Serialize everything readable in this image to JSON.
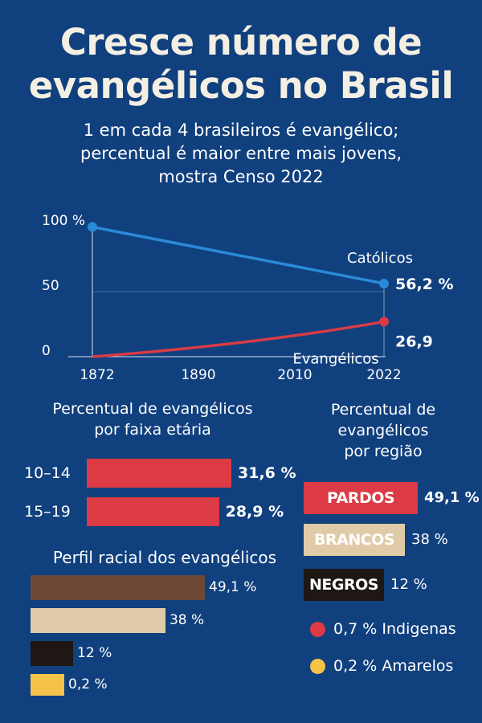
{
  "title_line1": "Cresce número de",
  "title_line2": "evangélicos no Brasil",
  "subtitle_line1": "1 em cada 4 brasileiros é evangélico;",
  "subtitle_line2": "percentual é maior entre mais jovens,",
  "subtitle_line3": "mostra Censo 2022",
  "colors": {
    "background": "#10407e",
    "catholic_line": "#2a8ad6",
    "evangelical_line": "#d83b45",
    "bar_red": "#dc3a44",
    "pardos_brown": "#6e4836",
    "brancos_beige": "#e0cba9",
    "negros_black": "#1e1714",
    "amarelos_yellow": "#f5c24a"
  },
  "chart_data": [
    {
      "type": "line",
      "x_ticks": [
        "1872",
        "1890",
        "2010",
        "2022"
      ],
      "y_ticks": [
        "100 %",
        "50",
        "0"
      ],
      "ylim": [
        0,
        100
      ],
      "series": [
        {
          "name": "Católicos",
          "x": [
            1872,
            2022
          ],
          "values": [
            99.7,
            56.2
          ],
          "end_label": "56,2 %"
        },
        {
          "name": "Evangélicos",
          "x": [
            1872,
            2022
          ],
          "values": [
            0,
            26.9
          ],
          "end_label": "26,9"
        }
      ]
    },
    {
      "type": "bar",
      "title_line1": "Percentual de evangélicos",
      "title_line2": "por faixa etária",
      "categories": [
        "10–14",
        "15–19"
      ],
      "values": [
        31.6,
        28.9
      ],
      "value_labels": [
        "31,6 %",
        "28,9 %"
      ]
    },
    {
      "type": "bar",
      "title": "Perfil racial dos evangélicos",
      "values": [
        49.1,
        38,
        12,
        0.2
      ],
      "value_labels": [
        "49,1 %",
        "38 %",
        "12 %",
        "0,2 %"
      ]
    },
    {
      "type": "bar",
      "title_line1": "Percentual de",
      "title_line2": "evangélicos",
      "title_line3": "por região",
      "categories": [
        "PARDOS",
        "BRANCOS",
        "NEGROS"
      ],
      "values": [
        49.1,
        38,
        12
      ],
      "value_labels": [
        "49,1 %",
        "38 %",
        "12 %"
      ],
      "legend": [
        {
          "value_label": "0,7 %",
          "label": "Indigenas"
        },
        {
          "value_label": "0,2 %",
          "label": "Amarelos"
        }
      ]
    }
  ]
}
